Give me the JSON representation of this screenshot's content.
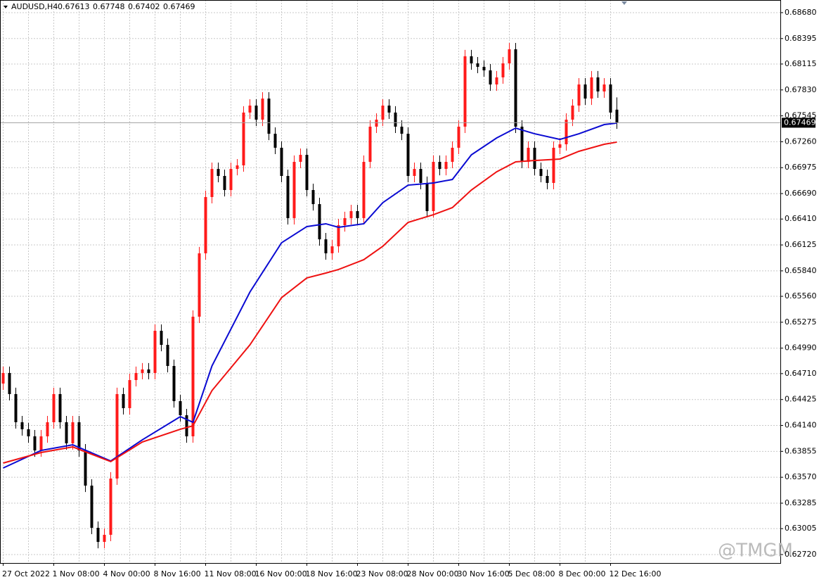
{
  "chart_data": {
    "type": "candlestick",
    "symbol": "AUDUSD,H4",
    "watermark": "@TMGM",
    "up_color": "#ff1a1a",
    "down_color": "#000000",
    "grid": true,
    "categories": [
      "27 Oct 2022",
      null,
      null,
      null,
      null,
      null,
      null,
      null,
      "1 Nov 08:00",
      null,
      null,
      null,
      null,
      null,
      null,
      null,
      "4 Nov 00:00",
      null,
      null,
      null,
      null,
      null,
      null,
      null,
      "8 Nov 16:00",
      null,
      null,
      null,
      null,
      null,
      null,
      null,
      "11 Nov 08:00",
      null,
      null,
      null,
      null,
      null,
      null,
      null,
      "16 Nov 00:00",
      null,
      null,
      null,
      null,
      null,
      null,
      null,
      "18 Nov 16:00",
      null,
      null,
      null,
      null,
      null,
      null,
      null,
      "23 Nov 08:00",
      null,
      null,
      null,
      null,
      null,
      null,
      null,
      "28 Nov 00:00",
      null,
      null,
      null,
      null,
      null,
      null,
      null,
      "30 Nov 16:00",
      null,
      null,
      null,
      null,
      null,
      null,
      null,
      "5 Dec 08:00",
      null,
      null,
      null,
      null,
      null,
      null,
      null,
      "8 Dec 00:00",
      null,
      null,
      null,
      null,
      null,
      null,
      null,
      "12 Dec 16:00",
      null
    ],
    "open": [
      0.646,
      0.64717,
      0.64485,
      0.64175,
      0.64098,
      0.6402,
      0.63865,
      0.6402,
      0.64175,
      0.64485,
      0.64175,
      0.63943,
      0.64175,
      0.63865,
      0.63478,
      0.63014,
      0.62859,
      0.62937,
      0.63556,
      0.64485,
      0.6433,
      0.64639,
      0.64717,
      0.64756,
      0.64717,
      0.65181,
      0.65026,
      0.64794,
      0.64407,
      0.64252,
      0.6402,
      0.65336,
      0.66033,
      0.66652,
      0.66961,
      0.66884,
      0.66729,
      0.66961,
      0.67,
      0.67581,
      0.67658,
      0.67503,
      0.67735,
      0.67348,
      0.67194,
      0.66884,
      0.6642,
      0.67039,
      0.67116,
      0.66729,
      0.66574,
      0.66187,
      0.66033,
      0.6611,
      0.66342,
      0.6642,
      0.66497,
      0.6642,
      0.67039,
      0.67426,
      0.67503,
      0.67658,
      0.67581,
      0.67426,
      0.67348,
      0.66884,
      0.66961,
      0.66807,
      0.66497,
      0.67039,
      0.66961,
      0.67039,
      0.67194,
      0.67426,
      0.682,
      0.68122,
      0.68084,
      0.68045,
      0.6789,
      0.67968,
      0.68122,
      0.68277,
      0.67426,
      0.67039,
      0.67194,
      0.66961,
      0.66884,
      0.66807,
      0.67194,
      0.67232,
      0.67503,
      0.67658,
      0.6789,
      0.67735,
      0.67968,
      0.67813,
      0.6789,
      0.67613
    ],
    "high": [
      0.64787,
      0.64787,
      0.64555,
      0.64245,
      0.64168,
      0.6409,
      0.6409,
      0.64245,
      0.64555,
      0.64555,
      0.64245,
      0.64245,
      0.64245,
      0.63935,
      0.63548,
      0.63084,
      0.63007,
      0.63626,
      0.64555,
      0.64555,
      0.64709,
      0.64787,
      0.64826,
      0.64826,
      0.65251,
      0.65251,
      0.65096,
      0.64864,
      0.64477,
      0.64322,
      0.65406,
      0.66103,
      0.66722,
      0.67031,
      0.67031,
      0.66954,
      0.67031,
      0.6707,
      0.67651,
      0.67728,
      0.67728,
      0.67805,
      0.67805,
      0.67418,
      0.67264,
      0.66954,
      0.67109,
      0.67186,
      0.67186,
      0.66799,
      0.66644,
      0.66257,
      0.6618,
      0.66412,
      0.6649,
      0.66567,
      0.66567,
      0.67109,
      0.67496,
      0.67573,
      0.67728,
      0.67728,
      0.67651,
      0.67496,
      0.67418,
      0.67031,
      0.67031,
      0.66877,
      0.67109,
      0.67109,
      0.67109,
      0.67264,
      0.67496,
      0.6827,
      0.6827,
      0.68192,
      0.68154,
      0.68115,
      0.68038,
      0.68192,
      0.68347,
      0.68347,
      0.67496,
      0.67264,
      0.67264,
      0.67031,
      0.66954,
      0.67264,
      0.67302,
      0.67573,
      0.67728,
      0.6796,
      0.6796,
      0.68038,
      0.68038,
      0.6796,
      0.6796,
      0.67748
    ],
    "low": [
      0.6453,
      0.64415,
      0.64105,
      0.64028,
      0.6395,
      0.63795,
      0.63795,
      0.6395,
      0.64105,
      0.64105,
      0.63873,
      0.63873,
      0.63795,
      0.63408,
      0.62944,
      0.62789,
      0.62789,
      0.62867,
      0.63486,
      0.6426,
      0.6426,
      0.64569,
      0.64647,
      0.64647,
      0.64647,
      0.64956,
      0.64724,
      0.64337,
      0.64182,
      0.6395,
      0.6395,
      0.65266,
      0.65963,
      0.66582,
      0.66814,
      0.66659,
      0.66659,
      0.66891,
      0.6693,
      0.67511,
      0.67433,
      0.67433,
      0.67278,
      0.67124,
      0.66814,
      0.6635,
      0.6635,
      0.66969,
      0.66659,
      0.66504,
      0.66117,
      0.65963,
      0.65963,
      0.6604,
      0.66272,
      0.6635,
      0.6635,
      0.6635,
      0.66969,
      0.67356,
      0.67433,
      0.67511,
      0.67356,
      0.67278,
      0.66814,
      0.66814,
      0.66737,
      0.66427,
      0.66427,
      0.66891,
      0.66891,
      0.66969,
      0.67124,
      0.67356,
      0.68052,
      0.68014,
      0.67975,
      0.6782,
      0.6782,
      0.67898,
      0.68052,
      0.67356,
      0.66969,
      0.66969,
      0.66891,
      0.66814,
      0.66737,
      0.66737,
      0.67124,
      0.67162,
      0.67433,
      0.67588,
      0.67665,
      0.67665,
      0.67743,
      0.67743,
      0.67511,
      0.67402
    ],
    "close": [
      0.64717,
      0.64485,
      0.64175,
      0.64098,
      0.6402,
      0.63865,
      0.6402,
      0.64175,
      0.64485,
      0.64175,
      0.63943,
      0.64175,
      0.63865,
      0.63478,
      0.63014,
      0.62859,
      0.62937,
      0.63556,
      0.64485,
      0.6433,
      0.64639,
      0.64717,
      0.64756,
      0.64717,
      0.65181,
      0.65026,
      0.64794,
      0.64407,
      0.64252,
      0.6402,
      0.65336,
      0.66033,
      0.66652,
      0.66961,
      0.66884,
      0.66729,
      0.66961,
      0.67,
      0.67581,
      0.67658,
      0.67503,
      0.67735,
      0.67348,
      0.67194,
      0.66884,
      0.6642,
      0.67039,
      0.67116,
      0.66729,
      0.66574,
      0.66187,
      0.66033,
      0.6611,
      0.66342,
      0.6642,
      0.66497,
      0.6642,
      0.67039,
      0.67426,
      0.67503,
      0.67658,
      0.67581,
      0.67426,
      0.67348,
      0.66884,
      0.66961,
      0.66807,
      0.66497,
      0.67039,
      0.66961,
      0.67039,
      0.67194,
      0.67426,
      0.682,
      0.68122,
      0.68084,
      0.68045,
      0.6789,
      0.67968,
      0.68122,
      0.68277,
      0.67426,
      0.67039,
      0.67194,
      0.66961,
      0.66884,
      0.66807,
      0.67194,
      0.67232,
      0.67503,
      0.67658,
      0.6789,
      0.67735,
      0.67968,
      0.67813,
      0.6789,
      0.67581,
      0.67469
    ],
    "series": [
      {
        "color": "#0a0ad2",
        "x": [
          0,
          6,
          11,
          17,
          22,
          28,
          30,
          33,
          39,
          44,
          48,
          51,
          53,
          57,
          60,
          64,
          68,
          71,
          74,
          78,
          81,
          84,
          88,
          91,
          95,
          97
        ],
        "values": [
          0.63672,
          0.63865,
          0.63927,
          0.63749,
          0.63982,
          0.64237,
          0.64175,
          0.64794,
          0.65607,
          0.66149,
          0.66327,
          0.66358,
          0.66319,
          0.66358,
          0.6659,
          0.66783,
          0.66807,
          0.66845,
          0.67116,
          0.67302,
          0.6741,
          0.67348,
          0.67286,
          0.67348,
          0.67449,
          0.67465
        ]
      },
      {
        "color": "#ee1111",
        "x": [
          0,
          6,
          11,
          17,
          22,
          28,
          30,
          33,
          39,
          44,
          48,
          51,
          53,
          57,
          60,
          64,
          68,
          71,
          74,
          78,
          81,
          84,
          88,
          91,
          95,
          97
        ],
        "values": [
          0.63726,
          0.63842,
          0.63904,
          0.63742,
          0.63958,
          0.64098,
          0.64136,
          0.64523,
          0.65026,
          0.65545,
          0.65762,
          0.65816,
          0.65855,
          0.65963,
          0.6611,
          0.66373,
          0.66458,
          0.66536,
          0.66729,
          0.6693,
          0.67039,
          0.67054,
          0.6707,
          0.67155,
          0.67232,
          0.67256
        ]
      }
    ],
    "ylim": [
      0.62627,
      0.68819
    ],
    "yticks": [
      {
        "value": 0.6868,
        "label": "0.68680"
      },
      {
        "value": 0.68395,
        "label": "0.68395"
      },
      {
        "value": 0.68115,
        "label": "0.68115"
      },
      {
        "value": 0.6783,
        "label": "0.67830"
      },
      {
        "value": 0.67545,
        "label": "0.67545"
      },
      {
        "value": 0.6726,
        "label": "0.67260"
      },
      {
        "value": 0.66975,
        "label": "0.66975"
      },
      {
        "value": 0.6669,
        "label": "0.66690"
      },
      {
        "value": 0.6641,
        "label": "0.66410"
      },
      {
        "value": 0.66125,
        "label": "0.66125"
      },
      {
        "value": 0.6584,
        "label": "0.65840"
      },
      {
        "value": 0.6556,
        "label": "0.65560"
      },
      {
        "value": 0.65275,
        "label": "0.65275"
      },
      {
        "value": 0.6499,
        "label": "0.64990"
      },
      {
        "value": 0.6471,
        "label": "0.64710"
      },
      {
        "value": 0.64425,
        "label": "0.64425"
      },
      {
        "value": 0.6414,
        "label": "0.64140"
      },
      {
        "value": 0.63855,
        "label": "0.63855"
      },
      {
        "value": 0.6357,
        "label": "0.63570"
      },
      {
        "value": 0.63285,
        "label": "0.63285"
      },
      {
        "value": 0.63005,
        "label": "0.63005"
      },
      {
        "value": 0.6272,
        "label": "0.62720"
      }
    ]
  }
}
